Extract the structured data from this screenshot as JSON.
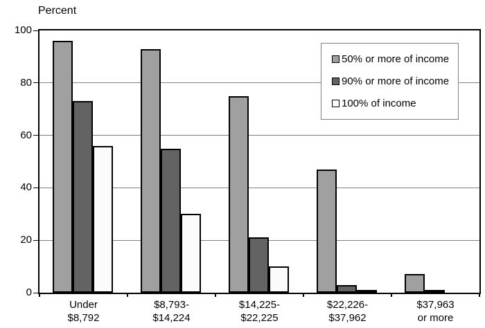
{
  "chart_data": {
    "type": "bar",
    "title": "",
    "ylabel": "Percent",
    "xlabel": "",
    "ylim": [
      0,
      100
    ],
    "yticks": [
      0,
      20,
      40,
      60,
      80,
      100
    ],
    "grid": true,
    "legend_position": "top-right",
    "categories": [
      "Under $8,792",
      "$8,793-$14,224",
      "$14,225-$22,225",
      "$22,226-$37,962",
      "$37,963 or more"
    ],
    "category_lines": [
      [
        "Under",
        "$8,792"
      ],
      [
        "$8,793-",
        "$14,224"
      ],
      [
        "$14,225-",
        "$22,225"
      ],
      [
        "$22,226-",
        "$37,962"
      ],
      [
        "$37,963",
        "or more"
      ]
    ],
    "series": [
      {
        "name": "50% or more of income",
        "color": "#A0A0A0",
        "values": [
          96,
          93,
          75,
          47,
          7
        ]
      },
      {
        "name": "90% or more of income",
        "color": "#636363",
        "values": [
          73,
          55,
          21,
          3,
          1
        ]
      },
      {
        "name": "100% of income",
        "color": "#FBFBFB",
        "values": [
          56,
          30,
          10,
          1,
          0
        ]
      }
    ],
    "colors": {
      "bar_outline": "#000000",
      "gridline": "#808080",
      "plot_border": "#000000",
      "legend_border": "#808080",
      "background": "#FFFFFF"
    }
  }
}
